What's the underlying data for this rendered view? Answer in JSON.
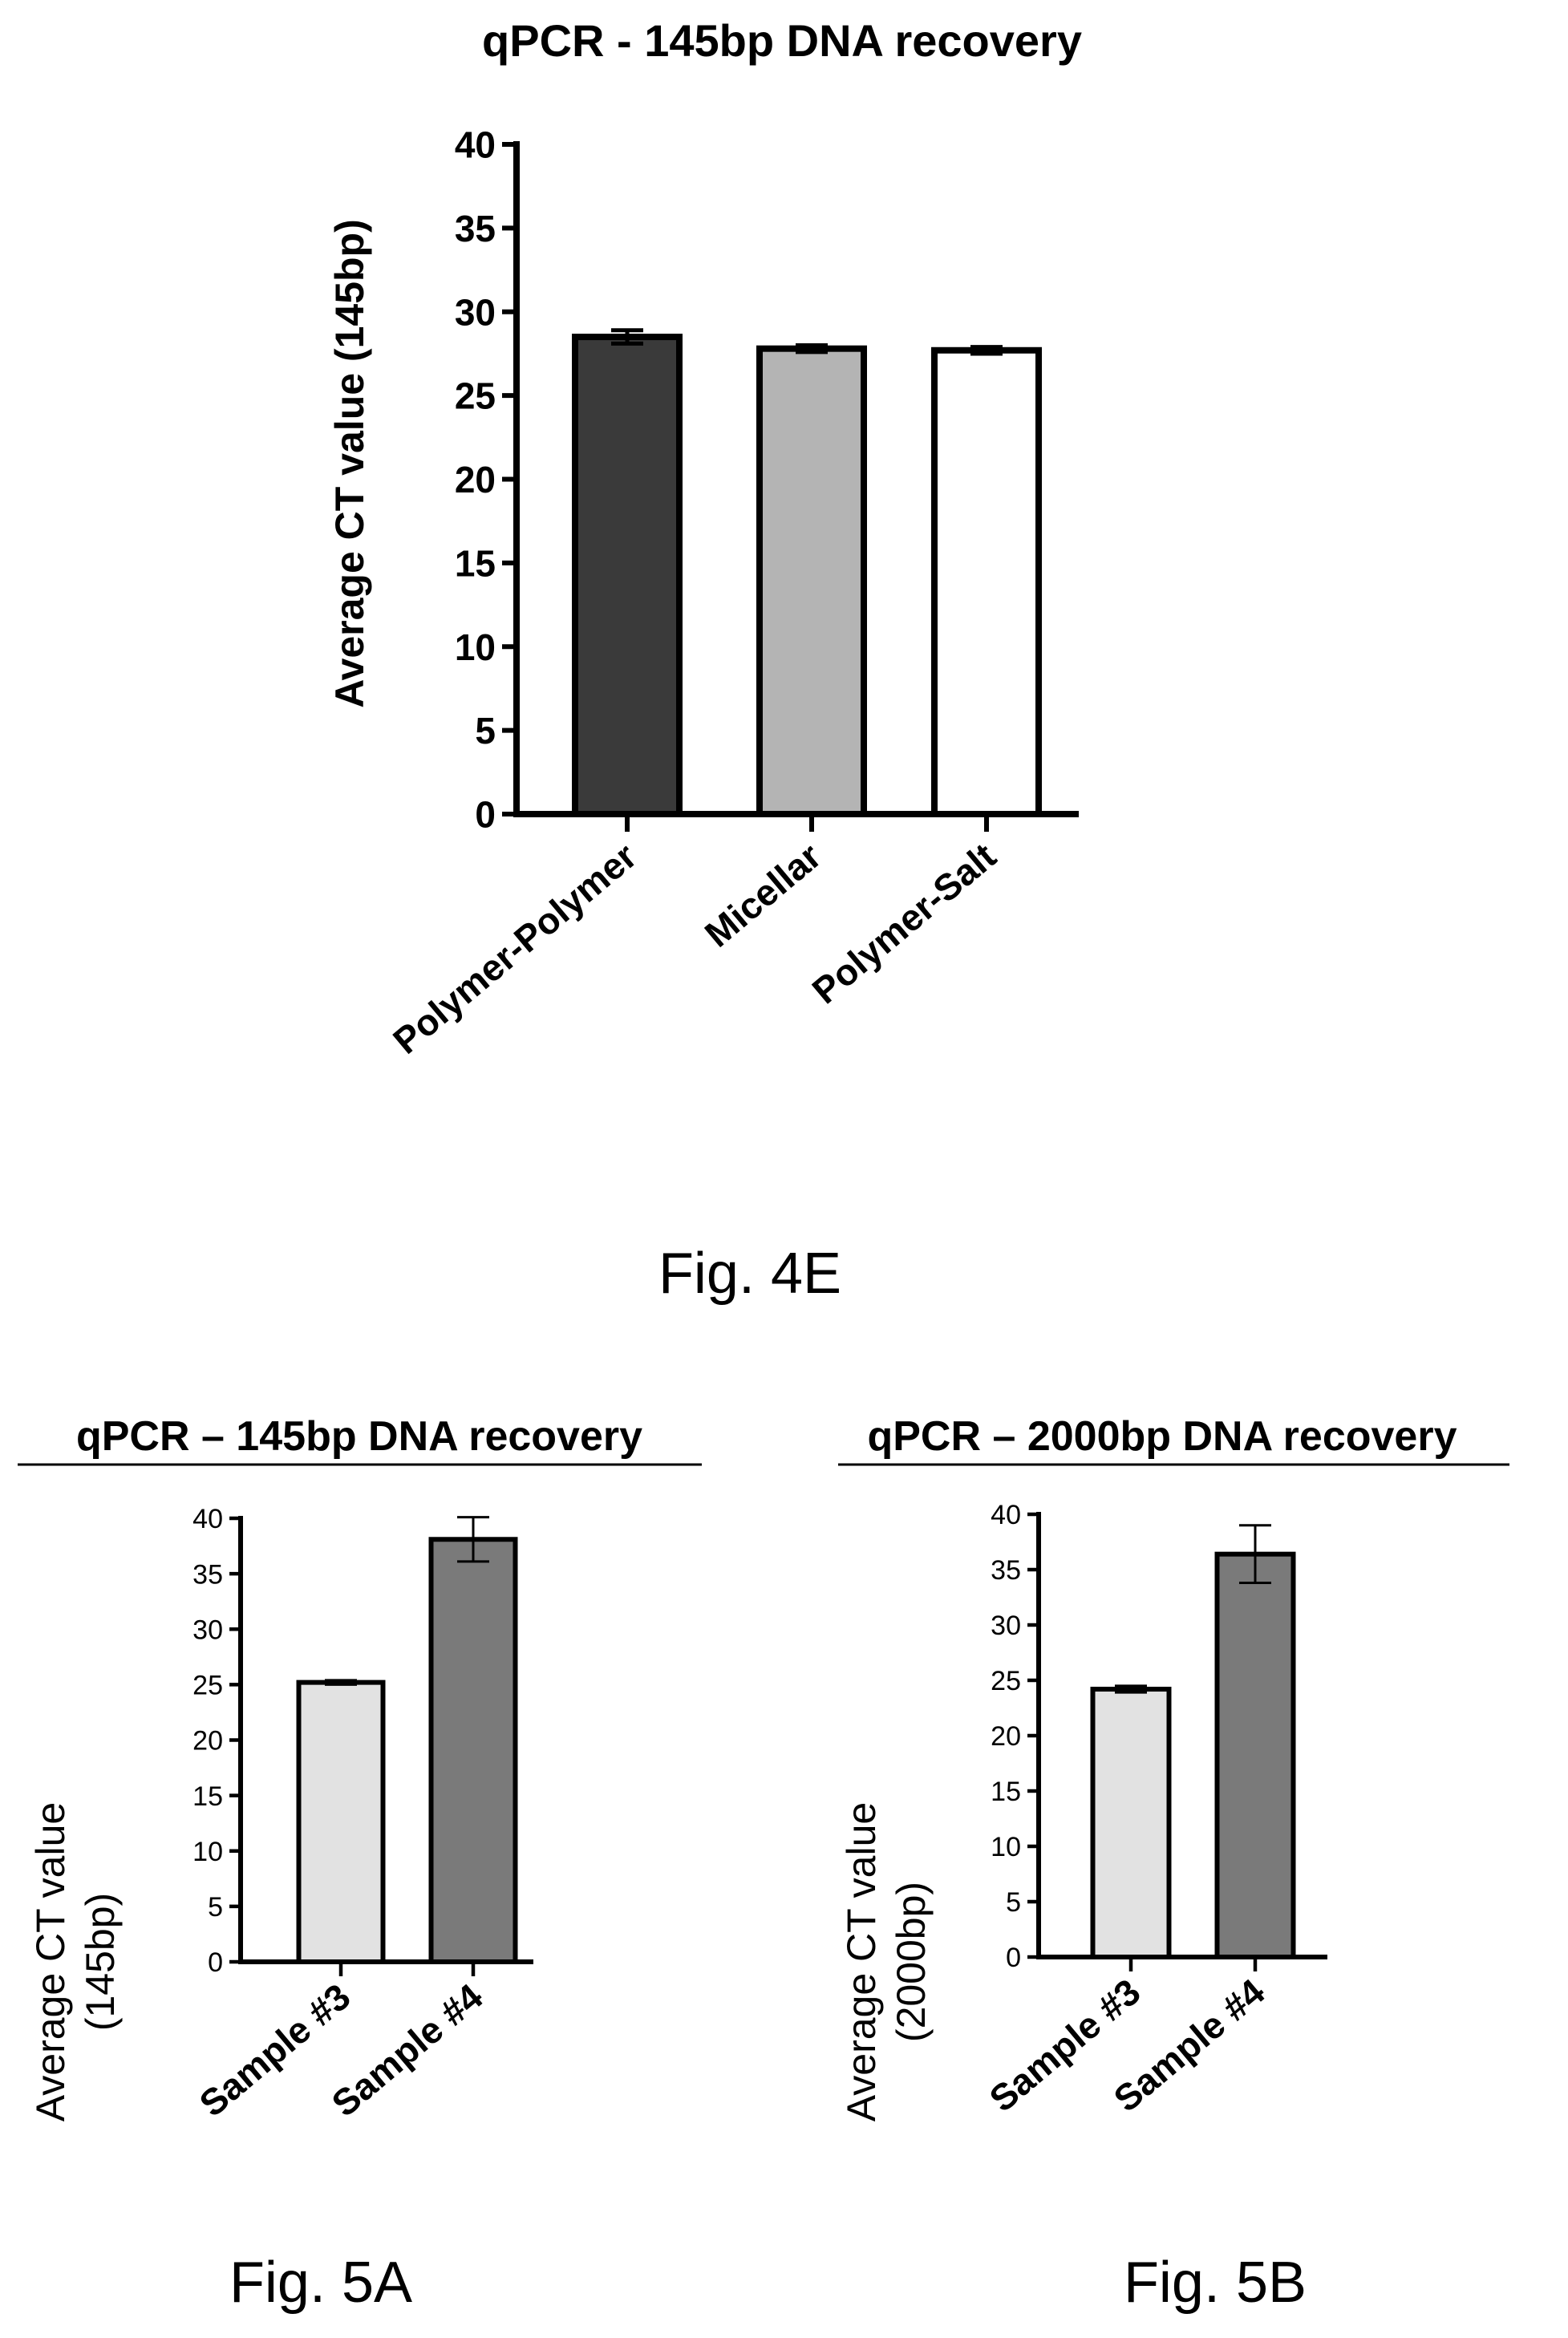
{
  "chart_data": [
    {
      "type": "bar",
      "title": "qPCR - 145bp DNA recovery",
      "ylabel": "Average CT value (145bp)",
      "xlabel": "",
      "ylim": [
        0,
        40
      ],
      "yticks": [
        "0",
        "5",
        "10",
        "15",
        "20",
        "25",
        "30",
        "35",
        "40"
      ],
      "categories": [
        "Polymer-Polymer",
        "Micellar",
        "Polymer-Salt"
      ],
      "values": [
        28.5,
        27.8,
        27.7
      ],
      "errors": [
        0.4,
        0.2,
        0.2
      ],
      "colors": [
        "#3a3a3a",
        "#b4b4b4",
        "#ffffff"
      ],
      "caption": "Fig. 4E"
    },
    {
      "type": "bar",
      "title": "qPCR – 145bp DNA recovery",
      "ylabel_lines": [
        "Average CT value",
        "(145bp)"
      ],
      "xlabel": "",
      "ylim": [
        0,
        40
      ],
      "yticks": [
        "0",
        "5",
        "10",
        "15",
        "20",
        "25",
        "30",
        "35",
        "40"
      ],
      "categories": [
        "Sample #3",
        "Sample #4"
      ],
      "values": [
        25.2,
        38.1
      ],
      "errors": [
        0.2,
        2.0
      ],
      "colors": [
        "#e2e2e2",
        "#7a7a7a"
      ],
      "caption": "Fig. 5A"
    },
    {
      "type": "bar",
      "title": "qPCR – 2000bp DNA recovery",
      "ylabel_lines": [
        "Average CT value",
        "(2000bp)"
      ],
      "xlabel": "",
      "ylim": [
        0,
        40
      ],
      "yticks": [
        "0",
        "5",
        "10",
        "15",
        "20",
        "25",
        "30",
        "35",
        "40"
      ],
      "categories": [
        "Sample #3",
        "Sample #4"
      ],
      "values": [
        24.2,
        36.4
      ],
      "errors": [
        0.3,
        2.6
      ],
      "colors": [
        "#e2e2e2",
        "#7a7a7a"
      ],
      "caption": "Fig. 5B"
    }
  ]
}
